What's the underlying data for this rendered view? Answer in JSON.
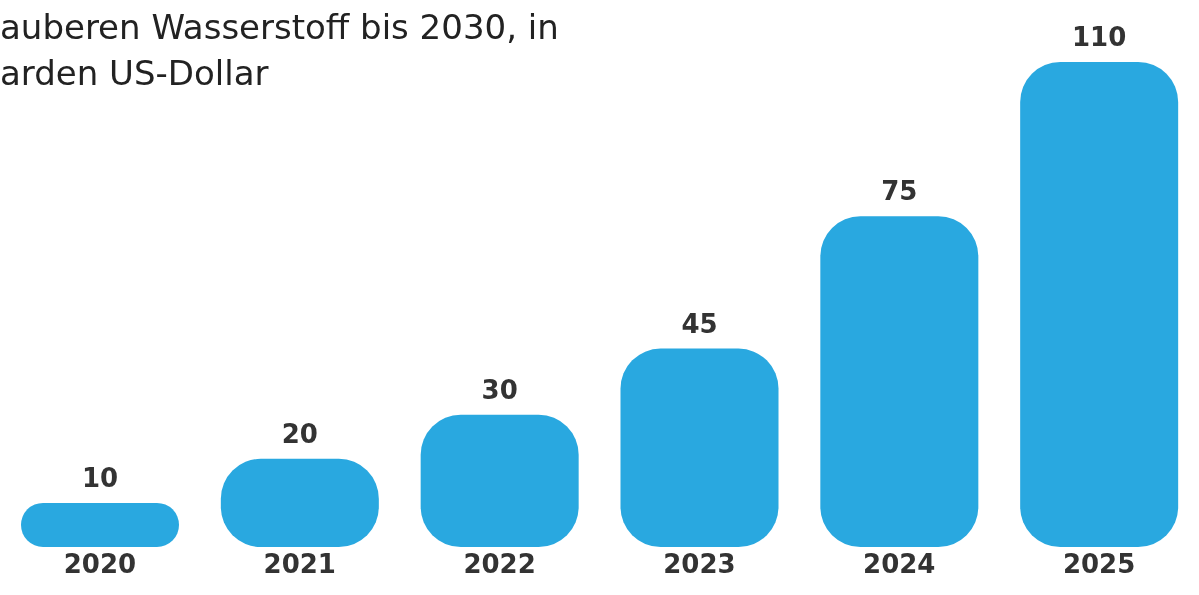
{
  "chart_data": {
    "type": "bar",
    "title": "auberen Wasserstoff bis 2030, in\narden US-Dollar",
    "categories": [
      "2020",
      "2021",
      "2022",
      "2023",
      "2024",
      "2025"
    ],
    "values": [
      10,
      20,
      30,
      45,
      75,
      110
    ],
    "color": "#29a8e0",
    "data_labels": true
  }
}
